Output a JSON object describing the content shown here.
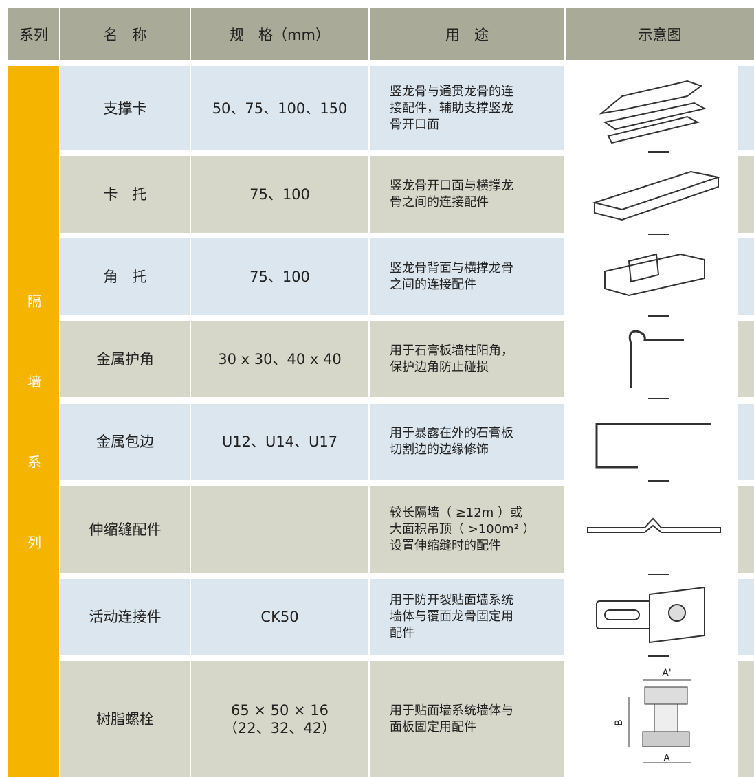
{
  "header": {
    "columns": [
      "系列",
      "名　称",
      "规　格（mm）",
      "用　途",
      "示意图"
    ]
  },
  "series": "隔墙系列",
  "rows": [
    {
      "name": "支撑卡",
      "spec": [
        "50、75、100、150"
      ],
      "use": [
        "竖龙骨与通贯龙骨的连",
        "接配件，辅助支撑竖龙",
        "骨开口面"
      ]
    },
    {
      "name": "卡　托",
      "spec": [
        "75、100"
      ],
      "use": [
        "竖龙骨开口面与横撑龙",
        "骨之间的连接配件"
      ]
    },
    {
      "name": "角　托",
      "spec": [
        "75、100"
      ],
      "use": [
        "竖龙骨背面与横撑龙骨",
        "之间的连接配件"
      ]
    },
    {
      "name": "金属护角",
      "spec": [
        "30 x 30、40 x 40"
      ],
      "use": [
        "用于石膏板墙柱阳角，",
        "保护边角防止碰损"
      ]
    },
    {
      "name": "金属包边",
      "spec": [
        "U12、U14、U17"
      ],
      "use": [
        "用于暴露在外的石膏板",
        "切割边的边缘修饰"
      ]
    },
    {
      "name": "伸缩缝配件",
      "spec": [],
      "use": [
        "较长隔墙（ ≥12m ）或",
        "大面积吊顶（ >100m² ）",
        "设置伸缩缝时的配件"
      ]
    },
    {
      "name": "活动连接件",
      "spec": [
        "CK50"
      ],
      "use": [
        "用于防开裂贴面墙系统",
        "墙体与覆面龙骨固定用",
        "配件"
      ]
    },
    {
      "name": "树脂螺栓",
      "spec": [
        "65 × 50 × 16",
        "（22、32、42）"
      ],
      "use": [
        "用于贴面墙系统墙体与",
        "面板固定用配件"
      ],
      "figure_labels": [
        "A'",
        "B",
        "A"
      ]
    }
  ]
}
